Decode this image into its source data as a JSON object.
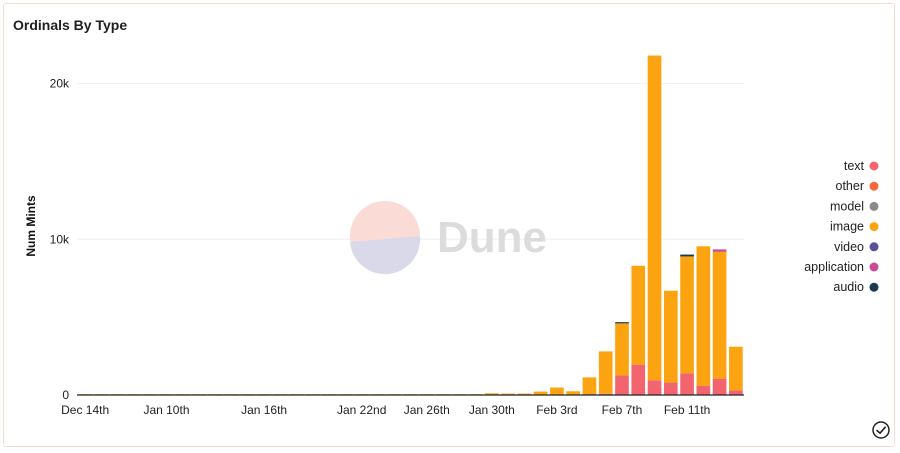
{
  "title": "Ordinals By Type",
  "watermark": "Dune",
  "chart_data": {
    "type": "bar",
    "stacked": true,
    "title": "Ordinals By Type",
    "xlabel": "",
    "ylabel": "Num Mints",
    "ylim": [
      0,
      22000
    ],
    "yticks": [
      0,
      10000,
      20000
    ],
    "ytick_labels": [
      "0",
      "10k",
      "20k"
    ],
    "xtick_labels": [
      "Dec 14th",
      "Jan 10th",
      "Jan 16th",
      "Jan 22nd",
      "Jan 26th",
      "Jan 30th",
      "Feb 3rd",
      "Feb 7th",
      "Feb 11th"
    ],
    "grid": true,
    "legend_position": "right",
    "categories": [
      "Dec 14th",
      "Dec 15th",
      "Dec 16th",
      "Dec 17th",
      "Dec 18th",
      "Jan 10th",
      "Jan 11th",
      "Jan 12th",
      "Jan 13th",
      "Jan 14th",
      "Jan 15th",
      "Jan 16th",
      "Jan 17th",
      "Jan 18th",
      "Jan 19th",
      "Jan 20th",
      "Jan 21st",
      "Jan 22nd",
      "Jan 23rd",
      "Jan 24th",
      "Jan 25th",
      "Jan 26th",
      "Jan 27th",
      "Jan 28th",
      "Jan 29th",
      "Jan 30th",
      "Jan 31st",
      "Feb 1st",
      "Feb 2nd",
      "Feb 3rd",
      "Feb 4th",
      "Feb 5th",
      "Feb 6th",
      "Feb 7th",
      "Feb 8th",
      "Feb 9th",
      "Feb 10th",
      "Feb 11th",
      "Feb 12th",
      "Feb 13th",
      "Feb 14th"
    ],
    "series": [
      {
        "name": "text",
        "color": "#f3656e",
        "values": [
          0,
          0,
          0,
          0,
          0,
          0,
          0,
          0,
          0,
          0,
          0,
          0,
          0,
          0,
          0,
          0,
          0,
          0,
          0,
          0,
          0,
          0,
          0,
          0,
          0,
          10,
          10,
          10,
          20,
          20,
          30,
          60,
          80,
          1250,
          1950,
          950,
          800,
          1400,
          600,
          1050,
          300
        ]
      },
      {
        "name": "other",
        "color": "#f56a3a",
        "values": [
          0,
          0,
          0,
          0,
          0,
          0,
          0,
          0,
          0,
          0,
          0,
          0,
          0,
          0,
          0,
          0,
          0,
          0,
          0,
          0,
          0,
          0,
          0,
          0,
          0,
          0,
          0,
          0,
          0,
          0,
          0,
          0,
          0,
          0,
          0,
          0,
          0,
          0,
          0,
          0,
          0
        ]
      },
      {
        "name": "model",
        "color": "#8a8a8a",
        "values": [
          0,
          0,
          0,
          0,
          0,
          0,
          0,
          0,
          0,
          0,
          0,
          0,
          0,
          0,
          0,
          0,
          0,
          0,
          0,
          0,
          0,
          0,
          0,
          0,
          0,
          0,
          0,
          0,
          0,
          0,
          0,
          0,
          0,
          0,
          0,
          0,
          0,
          0,
          0,
          0,
          0
        ]
      },
      {
        "name": "image",
        "color": "#fca311",
        "values": [
          10,
          10,
          10,
          10,
          10,
          10,
          10,
          10,
          10,
          10,
          10,
          10,
          10,
          20,
          20,
          40,
          40,
          20,
          20,
          20,
          20,
          20,
          20,
          20,
          20,
          100,
          80,
          80,
          200,
          460,
          210,
          1070,
          2720,
          3350,
          6350,
          20850,
          5900,
          7500,
          8950,
          8150,
          2800
        ]
      },
      {
        "name": "video",
        "color": "#5c4d9c",
        "values": [
          0,
          0,
          0,
          0,
          0,
          0,
          0,
          0,
          0,
          0,
          0,
          0,
          0,
          0,
          0,
          0,
          0,
          0,
          0,
          0,
          0,
          0,
          0,
          0,
          0,
          0,
          0,
          0,
          0,
          0,
          0,
          0,
          0,
          0,
          0,
          0,
          0,
          0,
          0,
          0,
          0
        ]
      },
      {
        "name": "application",
        "color": "#c84996",
        "values": [
          0,
          0,
          0,
          0,
          0,
          0,
          0,
          0,
          0,
          0,
          0,
          0,
          0,
          0,
          0,
          0,
          0,
          0,
          0,
          0,
          0,
          0,
          0,
          0,
          0,
          0,
          0,
          0,
          0,
          0,
          0,
          0,
          0,
          0,
          0,
          0,
          0,
          0,
          0,
          150,
          0
        ]
      },
      {
        "name": "audio",
        "color": "#163a52",
        "values": [
          0,
          0,
          0,
          0,
          0,
          0,
          0,
          0,
          0,
          0,
          0,
          0,
          0,
          0,
          0,
          0,
          0,
          0,
          0,
          0,
          0,
          0,
          0,
          0,
          0,
          0,
          0,
          0,
          0,
          0,
          0,
          0,
          0,
          80,
          0,
          0,
          0,
          120,
          0,
          0,
          0
        ]
      }
    ]
  }
}
